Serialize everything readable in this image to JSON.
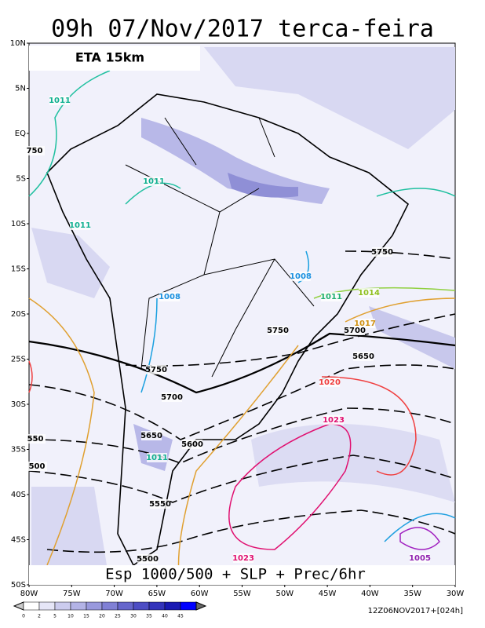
{
  "title": "09h 07/Nov/2017 terca-feira",
  "model": "ETA 15km",
  "subtitle": "Esp 1000/500 + SLP + Prec/6hr",
  "lat_labels": [
    "10N",
    "5N",
    "EQ",
    "5S",
    "10S",
    "15S",
    "20S",
    "25S",
    "30S",
    "35S",
    "40S",
    "45S",
    "50S"
  ],
  "lon_labels": [
    "80W",
    "75W",
    "70W",
    "65W",
    "60W",
    "55W",
    "50W",
    "45W",
    "40W",
    "35W",
    "30W"
  ],
  "colorbar": {
    "levels": [
      0,
      2,
      5,
      10,
      15,
      20,
      25,
      30,
      35,
      40,
      45
    ]
  },
  "timestamp": "12Z06NOV2017+[024h]",
  "contour_labels": [
    "1011",
    "1011",
    "1011",
    "1008",
    "1008",
    "1011",
    "1014",
    "1017",
    "1020",
    "1023",
    "1023",
    "1005",
    "1011",
    "5750",
    "5750",
    "5700",
    "5750",
    "5700",
    "5650",
    "5650",
    "5600",
    "5550",
    "5500",
    "550",
    "500",
    "750"
  ]
}
